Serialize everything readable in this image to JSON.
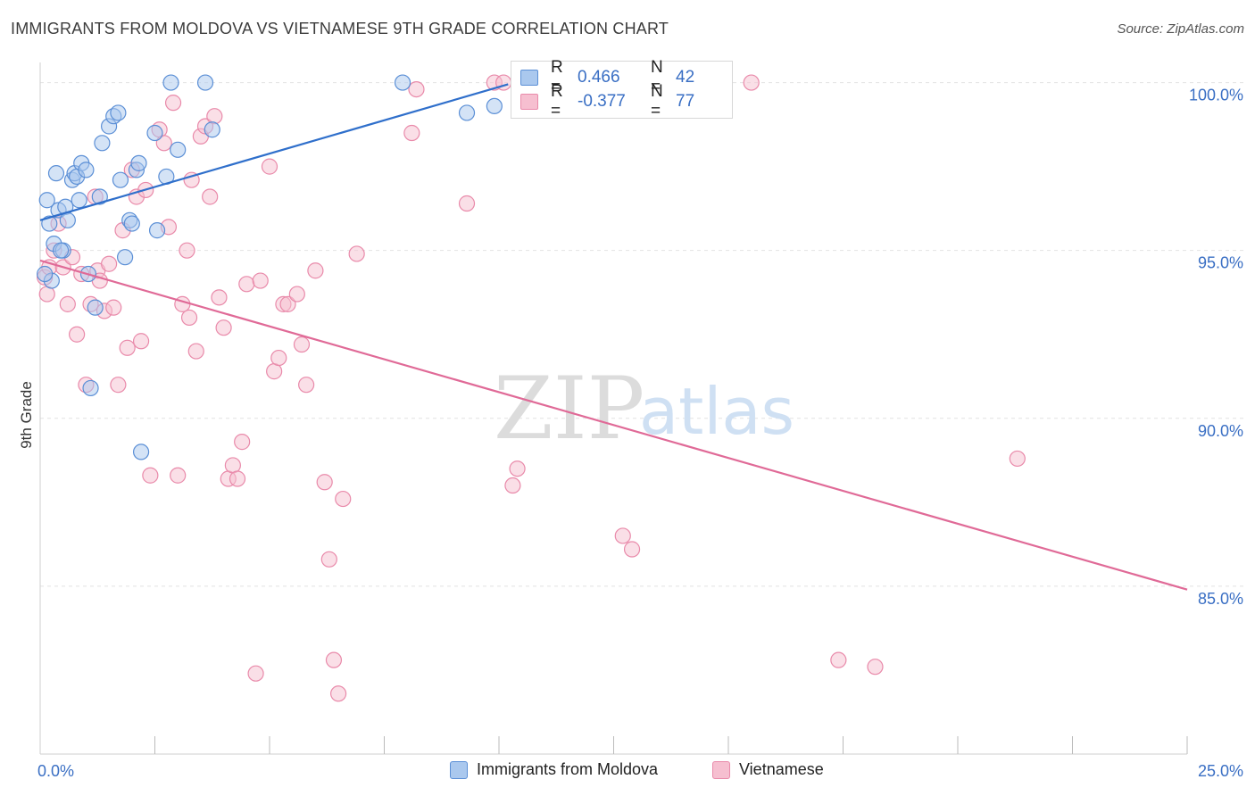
{
  "title": "IMMIGRANTS FROM MOLDOVA VS VIETNAMESE 9TH GRADE CORRELATION CHART",
  "source": "Source: ZipAtlas.com",
  "watermark": {
    "zip": "ZIP",
    "atlas": "atlas"
  },
  "legend": {
    "rows": [
      {
        "r_label": "R =",
        "r_value": "0.466",
        "n_label": "N =",
        "n_value": "42"
      },
      {
        "r_label": "R =",
        "r_value": "-0.377",
        "n_label": "N =",
        "n_value": "77"
      }
    ]
  },
  "bottom_legend": [
    {
      "label": "Immigrants from Moldova"
    },
    {
      "label": "Vietnamese"
    }
  ],
  "colors": {
    "moldova_fill": "#aac8ee",
    "moldova_stroke": "#5b8fd6",
    "moldova_line": "#2f6fcb",
    "viet_fill": "#f6bfd0",
    "viet_stroke": "#e98aaa",
    "viet_line": "#e06a97",
    "axis_text": "#3a6fc4",
    "grid": "#e2e2e2"
  },
  "chart_data": {
    "type": "scatter",
    "xlabel": "",
    "ylabel": "9th Grade",
    "xlim": [
      0,
      25
    ],
    "ylim": [
      80.0,
      100.6
    ],
    "x_tick_labels": [
      {
        "value": 0,
        "label": "0.0%"
      },
      {
        "value": 25,
        "label": "25.0%"
      }
    ],
    "y_tick_labels": [
      {
        "value": 100,
        "label": "100.0%"
      },
      {
        "value": 95,
        "label": "95.0%"
      },
      {
        "value": 90,
        "label": "90.0%"
      },
      {
        "value": 85,
        "label": "85.0%"
      }
    ],
    "x_minor_ticks": [
      2.5,
      5,
      7.5,
      10,
      12.5,
      15,
      17.5,
      20,
      22.5,
      25
    ],
    "series": [
      {
        "name": "Immigrants from Moldova",
        "trend": {
          "x0": 0.0,
          "y0": 95.9,
          "x1": 10.2,
          "y1": 99.95
        },
        "points": [
          [
            0.15,
            96.5
          ],
          [
            0.2,
            95.8
          ],
          [
            0.25,
            94.1
          ],
          [
            0.3,
            95.2
          ],
          [
            0.4,
            96.2
          ],
          [
            0.35,
            97.3
          ],
          [
            0.5,
            95.0
          ],
          [
            0.55,
            96.3
          ],
          [
            0.6,
            95.9
          ],
          [
            0.7,
            97.1
          ],
          [
            0.75,
            97.3
          ],
          [
            0.8,
            97.2
          ],
          [
            0.85,
            96.5
          ],
          [
            0.9,
            97.6
          ],
          [
            1.0,
            97.4
          ],
          [
            1.05,
            94.3
          ],
          [
            1.1,
            90.9
          ],
          [
            1.2,
            93.3
          ],
          [
            1.3,
            96.6
          ],
          [
            1.35,
            98.2
          ],
          [
            1.5,
            98.7
          ],
          [
            1.6,
            99.0
          ],
          [
            1.7,
            99.1
          ],
          [
            1.75,
            97.1
          ],
          [
            1.85,
            94.8
          ],
          [
            1.95,
            95.9
          ],
          [
            2.0,
            95.8
          ],
          [
            2.1,
            97.4
          ],
          [
            2.15,
            97.6
          ],
          [
            2.2,
            89.0
          ],
          [
            2.5,
            98.5
          ],
          [
            2.55,
            95.6
          ],
          [
            2.75,
            97.2
          ],
          [
            3.0,
            98.0
          ],
          [
            2.85,
            100.0
          ],
          [
            3.6,
            100.0
          ],
          [
            3.75,
            98.6
          ],
          [
            7.9,
            100.0
          ],
          [
            9.3,
            99.1
          ],
          [
            9.9,
            99.3
          ],
          [
            0.1,
            94.3
          ],
          [
            0.45,
            95.0
          ]
        ]
      },
      {
        "name": "Vietnamese",
        "trend": {
          "x0": 0.0,
          "y0": 94.7,
          "x1": 25.0,
          "y1": 84.9
        },
        "points": [
          [
            0.1,
            94.2
          ],
          [
            0.15,
            93.7
          ],
          [
            0.2,
            94.5
          ],
          [
            0.3,
            95.0
          ],
          [
            0.4,
            95.8
          ],
          [
            0.5,
            94.5
          ],
          [
            0.6,
            93.4
          ],
          [
            0.7,
            94.8
          ],
          [
            0.8,
            92.5
          ],
          [
            0.9,
            94.3
          ],
          [
            1.0,
            91.0
          ],
          [
            1.1,
            93.4
          ],
          [
            1.2,
            96.6
          ],
          [
            1.25,
            94.4
          ],
          [
            1.3,
            94.1
          ],
          [
            1.4,
            93.2
          ],
          [
            1.5,
            94.6
          ],
          [
            1.6,
            93.3
          ],
          [
            1.7,
            91.0
          ],
          [
            1.8,
            95.6
          ],
          [
            1.9,
            92.1
          ],
          [
            2.0,
            97.4
          ],
          [
            2.1,
            96.6
          ],
          [
            2.2,
            92.3
          ],
          [
            2.3,
            96.8
          ],
          [
            2.4,
            88.3
          ],
          [
            2.6,
            98.6
          ],
          [
            2.7,
            98.2
          ],
          [
            2.8,
            95.7
          ],
          [
            2.9,
            99.4
          ],
          [
            3.0,
            88.3
          ],
          [
            3.1,
            93.4
          ],
          [
            3.2,
            95.0
          ],
          [
            3.25,
            93.0
          ],
          [
            3.3,
            97.1
          ],
          [
            3.4,
            92.0
          ],
          [
            3.5,
            98.4
          ],
          [
            3.6,
            98.7
          ],
          [
            3.7,
            96.6
          ],
          [
            3.8,
            99.0
          ],
          [
            3.9,
            93.6
          ],
          [
            4.0,
            92.7
          ],
          [
            4.1,
            88.2
          ],
          [
            4.2,
            88.6
          ],
          [
            4.3,
            88.2
          ],
          [
            4.4,
            89.3
          ],
          [
            4.5,
            94.0
          ],
          [
            4.7,
            82.4
          ],
          [
            4.8,
            94.1
          ],
          [
            5.0,
            97.5
          ],
          [
            5.1,
            91.4
          ],
          [
            5.2,
            91.8
          ],
          [
            5.3,
            93.4
          ],
          [
            5.4,
            93.4
          ],
          [
            5.6,
            93.7
          ],
          [
            5.7,
            92.2
          ],
          [
            5.8,
            91.0
          ],
          [
            6.0,
            94.4
          ],
          [
            6.2,
            88.1
          ],
          [
            6.3,
            85.8
          ],
          [
            6.4,
            82.8
          ],
          [
            6.5,
            81.8
          ],
          [
            6.6,
            87.6
          ],
          [
            6.9,
            94.9
          ],
          [
            8.1,
            98.5
          ],
          [
            8.2,
            99.8
          ],
          [
            9.3,
            96.4
          ],
          [
            9.9,
            100.0
          ],
          [
            10.3,
            88.0
          ],
          [
            10.4,
            88.5
          ],
          [
            12.7,
            86.5
          ],
          [
            12.9,
            86.1
          ],
          [
            15.5,
            100.0
          ],
          [
            17.4,
            82.8
          ],
          [
            18.2,
            82.6
          ],
          [
            21.3,
            88.8
          ],
          [
            10.1,
            100.0
          ]
        ]
      }
    ]
  }
}
